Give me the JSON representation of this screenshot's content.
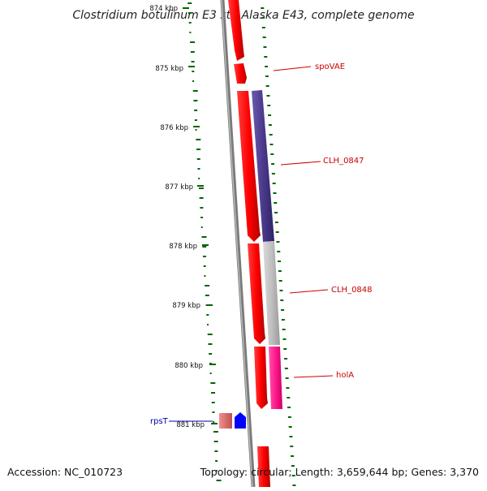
{
  "title": "Clostridium botulinum E3 str. Alaska E43, complete genome",
  "accession": "Accession: NC_010723",
  "topology": "Topology: circular; Length: 3,659,644 bp; Genes: 3,370",
  "ticks": [
    "874 kbp",
    "875 kbp",
    "876 kbp",
    "877 kbp",
    "878 kbp",
    "879 kbp",
    "880 kbp",
    "881 kbp"
  ],
  "genes": [
    {
      "name": "spoVAE",
      "color": "#cc0000"
    },
    {
      "name": "CLH_0847",
      "color": "#cc0000"
    },
    {
      "name": "CLH_0848",
      "color": "#cc0000"
    },
    {
      "name": "holA",
      "color": "#cc0000"
    },
    {
      "name": "rpsT",
      "color": "#0000aa"
    }
  ],
  "colors": {
    "cds_forward": "#ff0000",
    "cds_purple": "#4b3a8c",
    "cds_gray": "#c0c0c0",
    "cds_magenta": "#ff1a8c",
    "rrna_pink": "#e07070",
    "trna_blue": "#0000ff",
    "gc_ticks": "#006600",
    "backbone": "#808080"
  }
}
